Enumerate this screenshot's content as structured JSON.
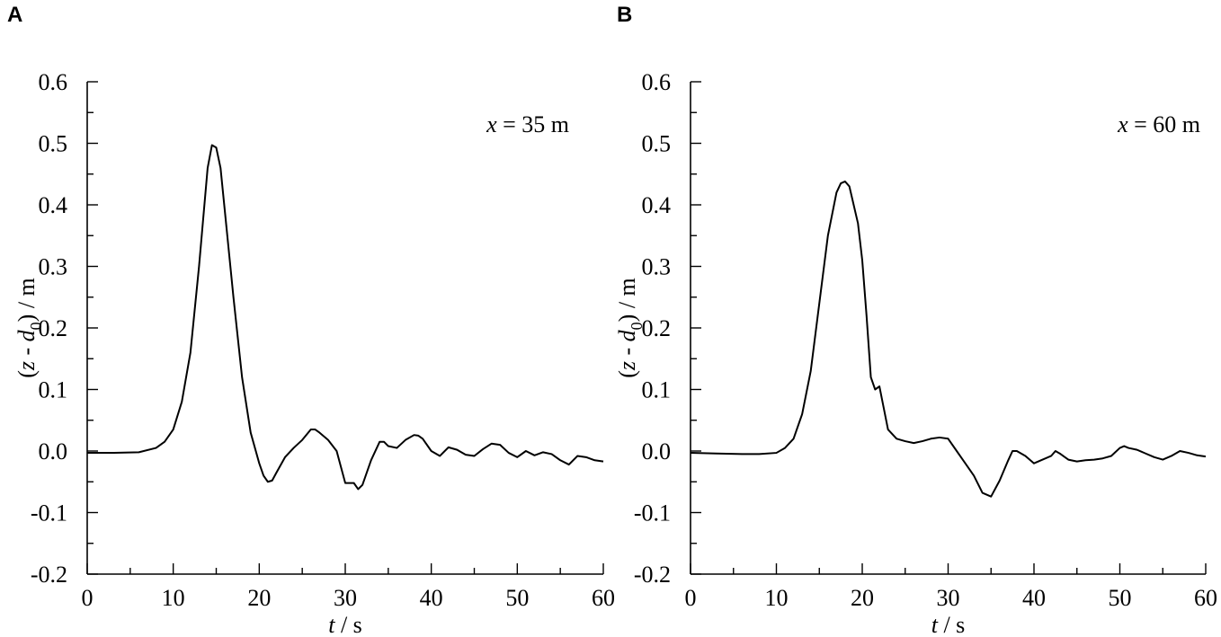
{
  "chart_data": [
    {
      "type": "line",
      "panel_label": "A",
      "annotation": {
        "var": "x",
        "text": " = 35 m"
      },
      "xlabel": {
        "var": "t",
        "rest": " / s"
      },
      "ylabel": {
        "pre": "(",
        "v1": "z",
        "mid": " - ",
        "v2": "d",
        "sub": "0",
        "post": ") / m"
      },
      "xlim": [
        0,
        60
      ],
      "ylim": [
        -0.2,
        0.6
      ],
      "x_ticks": [
        "0",
        "10",
        "20",
        "30",
        "40",
        "50",
        "60"
      ],
      "y_ticks": [
        "0.6",
        "0.5",
        "0.4",
        "0.3",
        "0.2",
        "0.1",
        "0.0",
        "-0.1",
        "-0.2"
      ],
      "grid": false,
      "series": [
        {
          "x": [
            0,
            3,
            6,
            8,
            9,
            10,
            11,
            12,
            13,
            14,
            14.5,
            15,
            15.5,
            16,
            17,
            18,
            19,
            20,
            20.5,
            21,
            21.5,
            22,
            23,
            24,
            25,
            26,
            26.5,
            27,
            28,
            29,
            30,
            31,
            31.5,
            32,
            33,
            34,
            34.5,
            35,
            36,
            37,
            38,
            38.5,
            39,
            40,
            41,
            42,
            43,
            44,
            45,
            46,
            47,
            48,
            49,
            50,
            51,
            52,
            53,
            54,
            55,
            56,
            57,
            58,
            59,
            60
          ],
          "y": [
            -0.003,
            -0.003,
            -0.002,
            0.005,
            0.015,
            0.035,
            0.08,
            0.16,
            0.3,
            0.46,
            0.497,
            0.493,
            0.46,
            0.39,
            0.25,
            0.12,
            0.03,
            -0.02,
            -0.04,
            -0.05,
            -0.048,
            -0.035,
            -0.01,
            0.005,
            0.018,
            0.035,
            0.035,
            0.03,
            0.018,
            0.0,
            -0.052,
            -0.052,
            -0.062,
            -0.055,
            -0.015,
            0.015,
            0.015,
            0.008,
            0.005,
            0.018,
            0.026,
            0.025,
            0.02,
            0.0,
            -0.008,
            0.006,
            0.002,
            -0.006,
            -0.008,
            0.003,
            0.012,
            0.01,
            -0.003,
            -0.01,
            0.0,
            -0.007,
            -0.002,
            -0.005,
            -0.015,
            -0.022,
            -0.008,
            -0.01,
            -0.015,
            -0.017
          ]
        }
      ]
    },
    {
      "type": "line",
      "panel_label": "B",
      "annotation": {
        "var": "x",
        "text": " = 60 m"
      },
      "xlabel": {
        "var": "t",
        "rest": " / s"
      },
      "ylabel": {
        "pre": "(",
        "v1": "z",
        "mid": " - ",
        "v2": "d",
        "sub": "0",
        "post": ") / m"
      },
      "xlim": [
        0,
        60
      ],
      "ylim": [
        -0.2,
        0.6
      ],
      "x_ticks": [
        "0",
        "10",
        "20",
        "30",
        "40",
        "50",
        "60"
      ],
      "y_ticks": [
        "0.6",
        "0.5",
        "0.4",
        "0.3",
        "0.2",
        "0.1",
        "0.0",
        "-0.1",
        "-0.2"
      ],
      "grid": false,
      "series": [
        {
          "x": [
            0,
            3,
            6,
            8,
            10,
            11,
            12,
            13,
            14,
            15,
            16,
            17,
            17.5,
            18,
            18.5,
            19,
            19.5,
            20,
            20.5,
            21,
            21.5,
            22,
            22.5,
            23,
            24,
            25,
            26,
            27,
            28,
            29,
            30,
            31,
            32,
            33,
            34,
            35,
            36,
            37,
            37.5,
            38,
            39,
            40,
            41,
            42,
            42.5,
            43,
            44,
            45,
            46,
            47,
            48,
            49,
            50,
            50.5,
            51,
            52,
            53,
            54,
            55,
            56,
            57,
            58,
            59,
            60
          ],
          "y": [
            -0.003,
            -0.004,
            -0.005,
            -0.005,
            -0.003,
            0.005,
            0.02,
            0.06,
            0.13,
            0.24,
            0.35,
            0.42,
            0.435,
            0.438,
            0.43,
            0.4,
            0.37,
            0.31,
            0.22,
            0.12,
            0.1,
            0.105,
            0.07,
            0.035,
            0.02,
            0.016,
            0.013,
            0.016,
            0.02,
            0.022,
            0.02,
            0.0,
            -0.02,
            -0.04,
            -0.068,
            -0.074,
            -0.048,
            -0.015,
            0.0,
            0.0,
            -0.008,
            -0.02,
            -0.014,
            -0.008,
            0.0,
            -0.004,
            -0.014,
            -0.017,
            -0.015,
            -0.014,
            -0.012,
            -0.008,
            0.005,
            0.008,
            0.005,
            0.002,
            -0.004,
            -0.01,
            -0.014,
            -0.008,
            0.0,
            -0.003,
            -0.007,
            -0.009
          ]
        }
      ]
    }
  ]
}
